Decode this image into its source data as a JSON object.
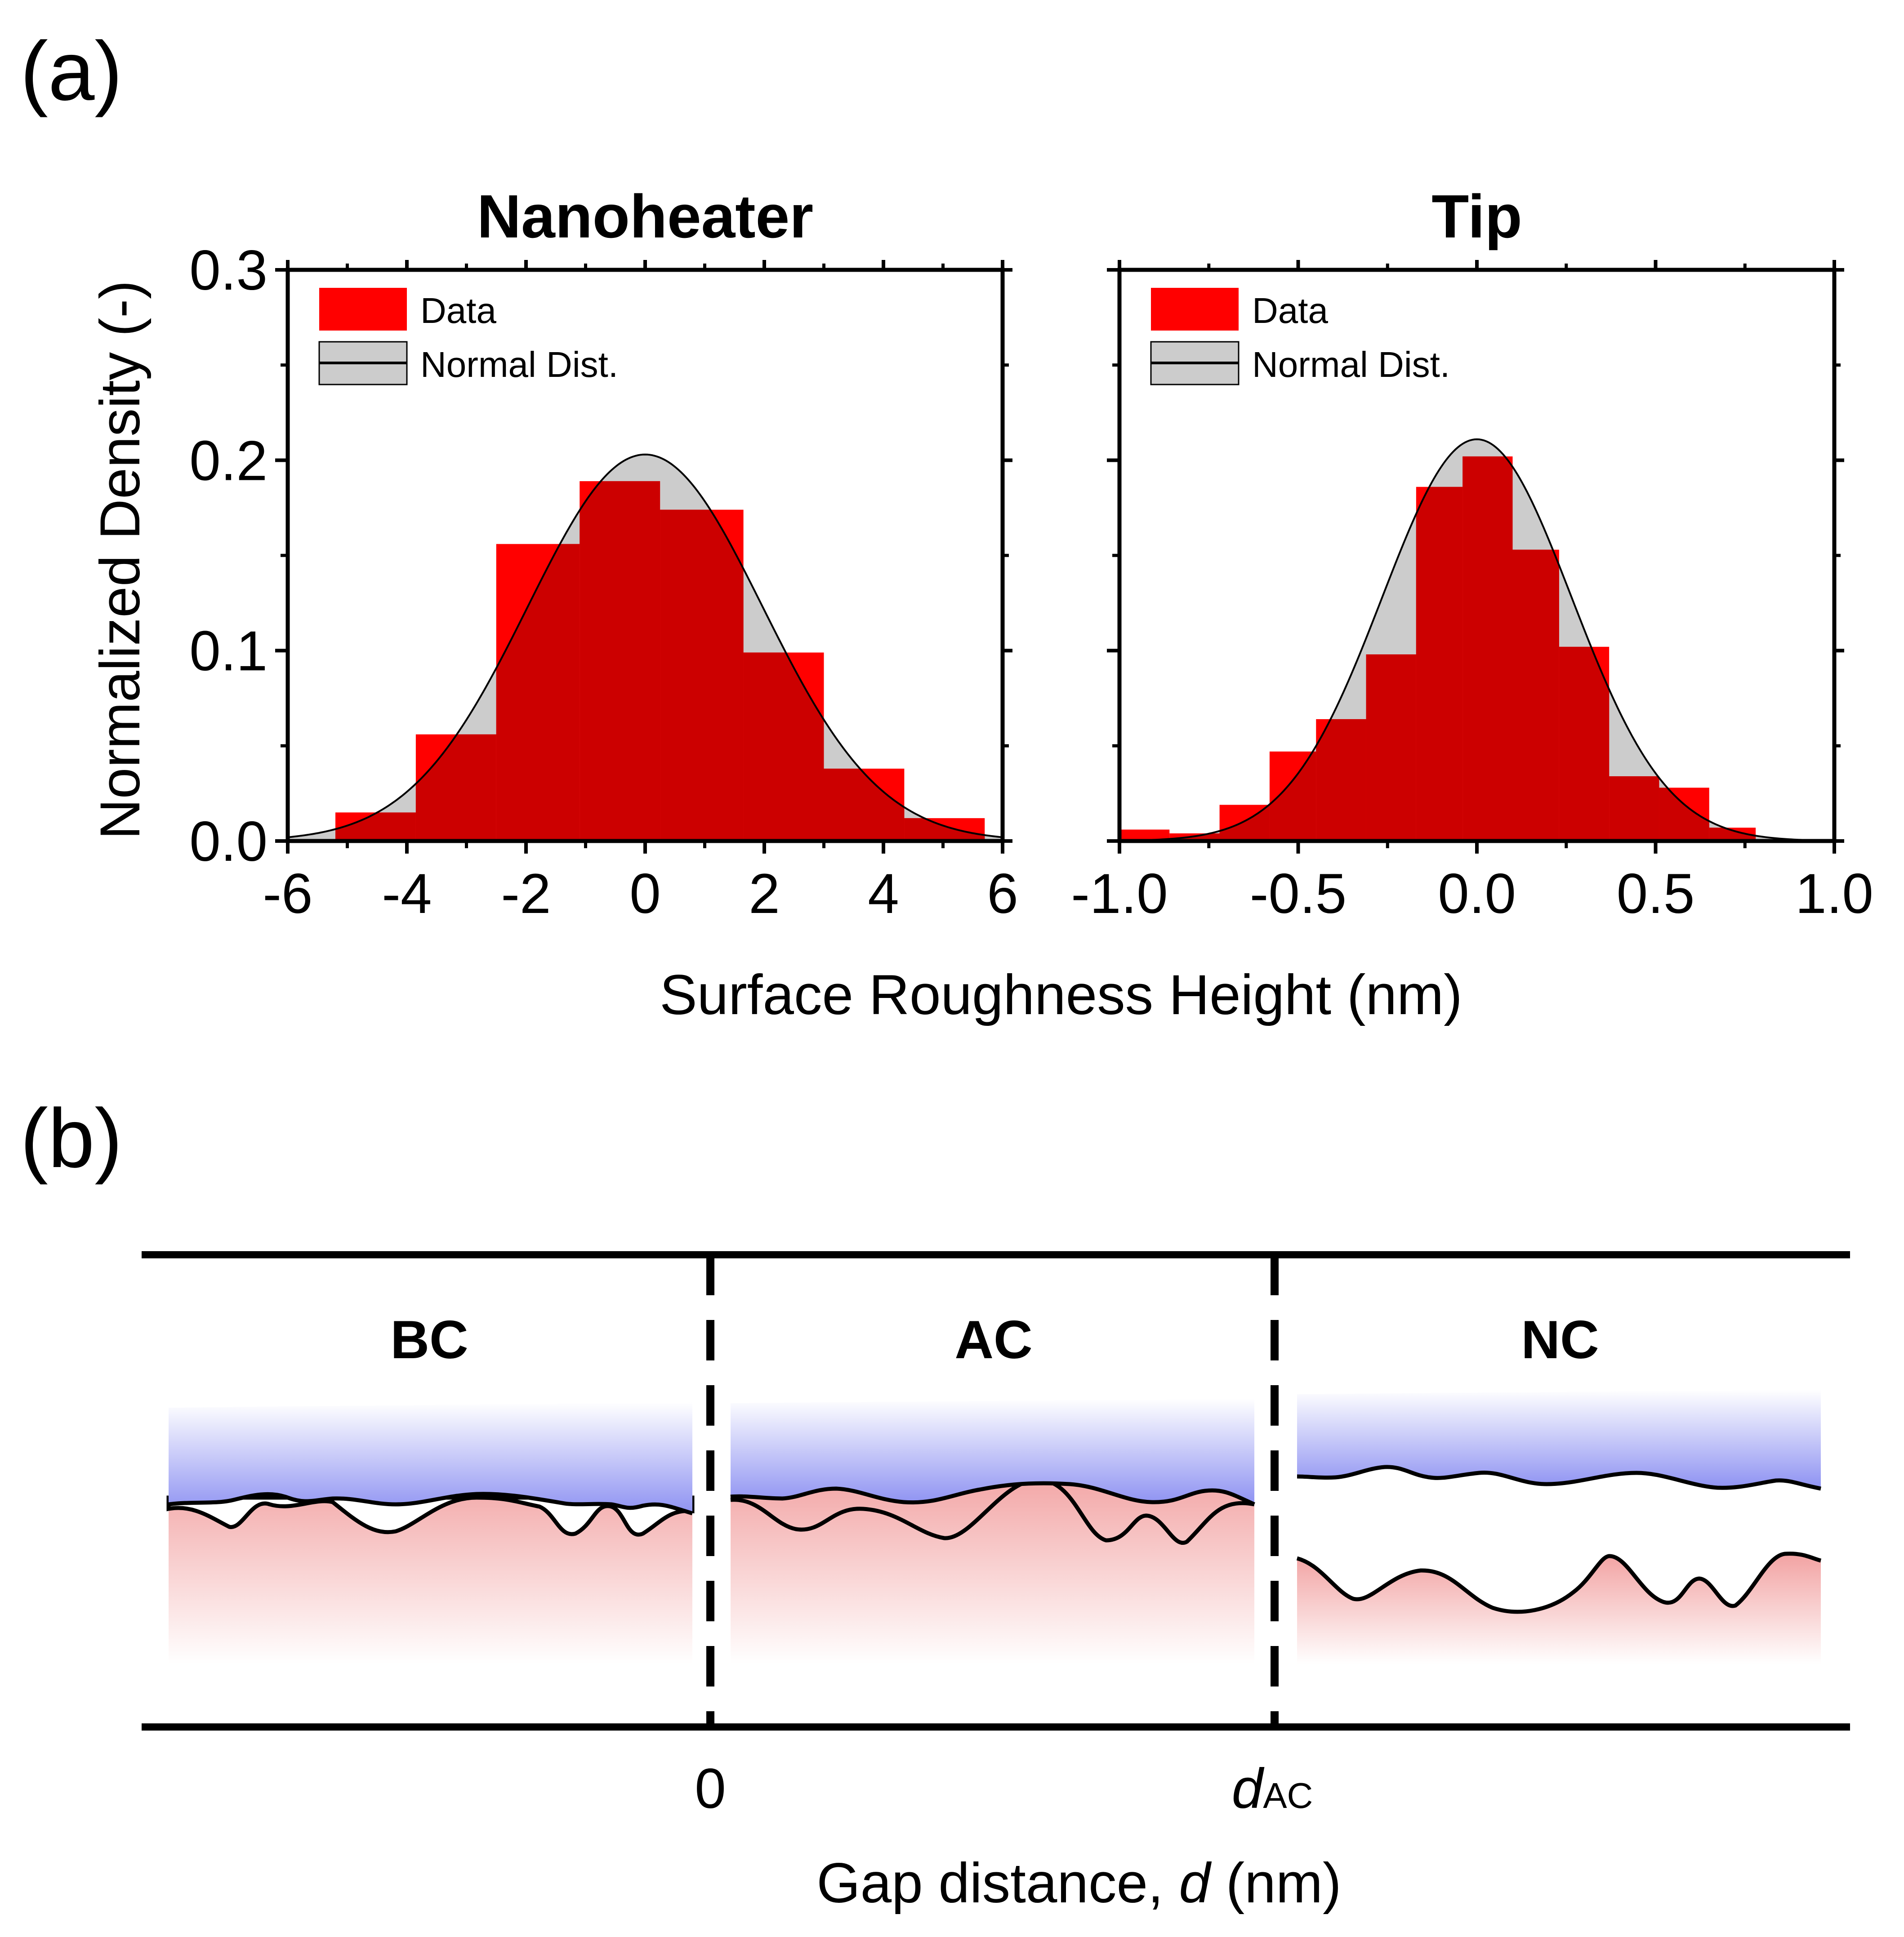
{
  "panel_a_label": "(a)",
  "panel_b_label": "(b)",
  "shared_xlabel": "Surface Roughness Height (nm)",
  "shared_ylabel": "Normalized Density (-)",
  "legend": {
    "data_label": "Data",
    "normal_label": "Normal Dist."
  },
  "colors": {
    "data": "#ff0000",
    "overlap": "#cc0000",
    "normal_fill": "#cccccc",
    "curve": "#000000"
  },
  "chart_data": [
    {
      "type": "bar",
      "title": "Nanoheater",
      "xlabel": "Surface Roughness Height (nm)",
      "ylabel": "Normalized Density (-)",
      "xlim": [
        -6,
        6
      ],
      "ylim": [
        0,
        0.3
      ],
      "xticks": [
        -6,
        -4,
        -2,
        0,
        2,
        4,
        6
      ],
      "xtick_labels": [
        "-6",
        "-4",
        "-2",
        "0",
        "2",
        "4",
        "6"
      ],
      "yticks": [
        0,
        0.1,
        0.2,
        0.3
      ],
      "ytick_labels": [
        "0.0",
        "0.1",
        "0.2",
        "0.3"
      ],
      "bin_edges": [
        -5.2,
        -3.85,
        -2.5,
        -1.1,
        0.25,
        1.65,
        3.0,
        4.35,
        5.7
      ],
      "values": [
        0.015,
        0.056,
        0.156,
        0.189,
        0.174,
        0.099,
        0.038,
        0.012
      ],
      "normal_dist": {
        "mean": 0,
        "std": 1.97,
        "peak": 0.203
      },
      "legend": [
        "Data",
        "Normal Dist."
      ]
    },
    {
      "type": "bar",
      "title": "Tip",
      "xlabel": "Surface Roughness Height (nm)",
      "ylabel": "Normalized Density (-)",
      "xlim": [
        -1.0,
        1.0
      ],
      "ylim": [
        0,
        0.3
      ],
      "xticks": [
        -1.0,
        -0.5,
        0.0,
        0.5,
        1.0
      ],
      "xtick_labels": [
        "-1.0",
        "-0.5",
        "0.0",
        "0.5",
        "1.0"
      ],
      "yticks": [
        0,
        0.1,
        0.2,
        0.3
      ],
      "ytick_labels": [],
      "bin_edges": [
        -1.0,
        -0.86,
        -0.72,
        -0.58,
        -0.45,
        -0.31,
        -0.17,
        -0.04,
        0.1,
        0.23,
        0.37,
        0.51,
        0.65,
        0.78,
        0.92
      ],
      "values": [
        0.006,
        0.004,
        0.019,
        0.047,
        0.064,
        0.098,
        0.186,
        0.202,
        0.153,
        0.102,
        0.034,
        0.028,
        0.007,
        0.0
      ],
      "normal_dist": {
        "mean": 0,
        "std": 0.265,
        "peak": 0.211
      },
      "legend": [
        "Data",
        "Normal Dist."
      ]
    }
  ],
  "schematic": {
    "regions": [
      "BC",
      "AC",
      "NC"
    ],
    "xlabel_prefix": "Gap distance, ",
    "xlabel_var": "d",
    "xlabel_unit": " (nm)",
    "boundary_zero": "0",
    "boundary_d": "d",
    "boundary_d_sub": "AC"
  }
}
